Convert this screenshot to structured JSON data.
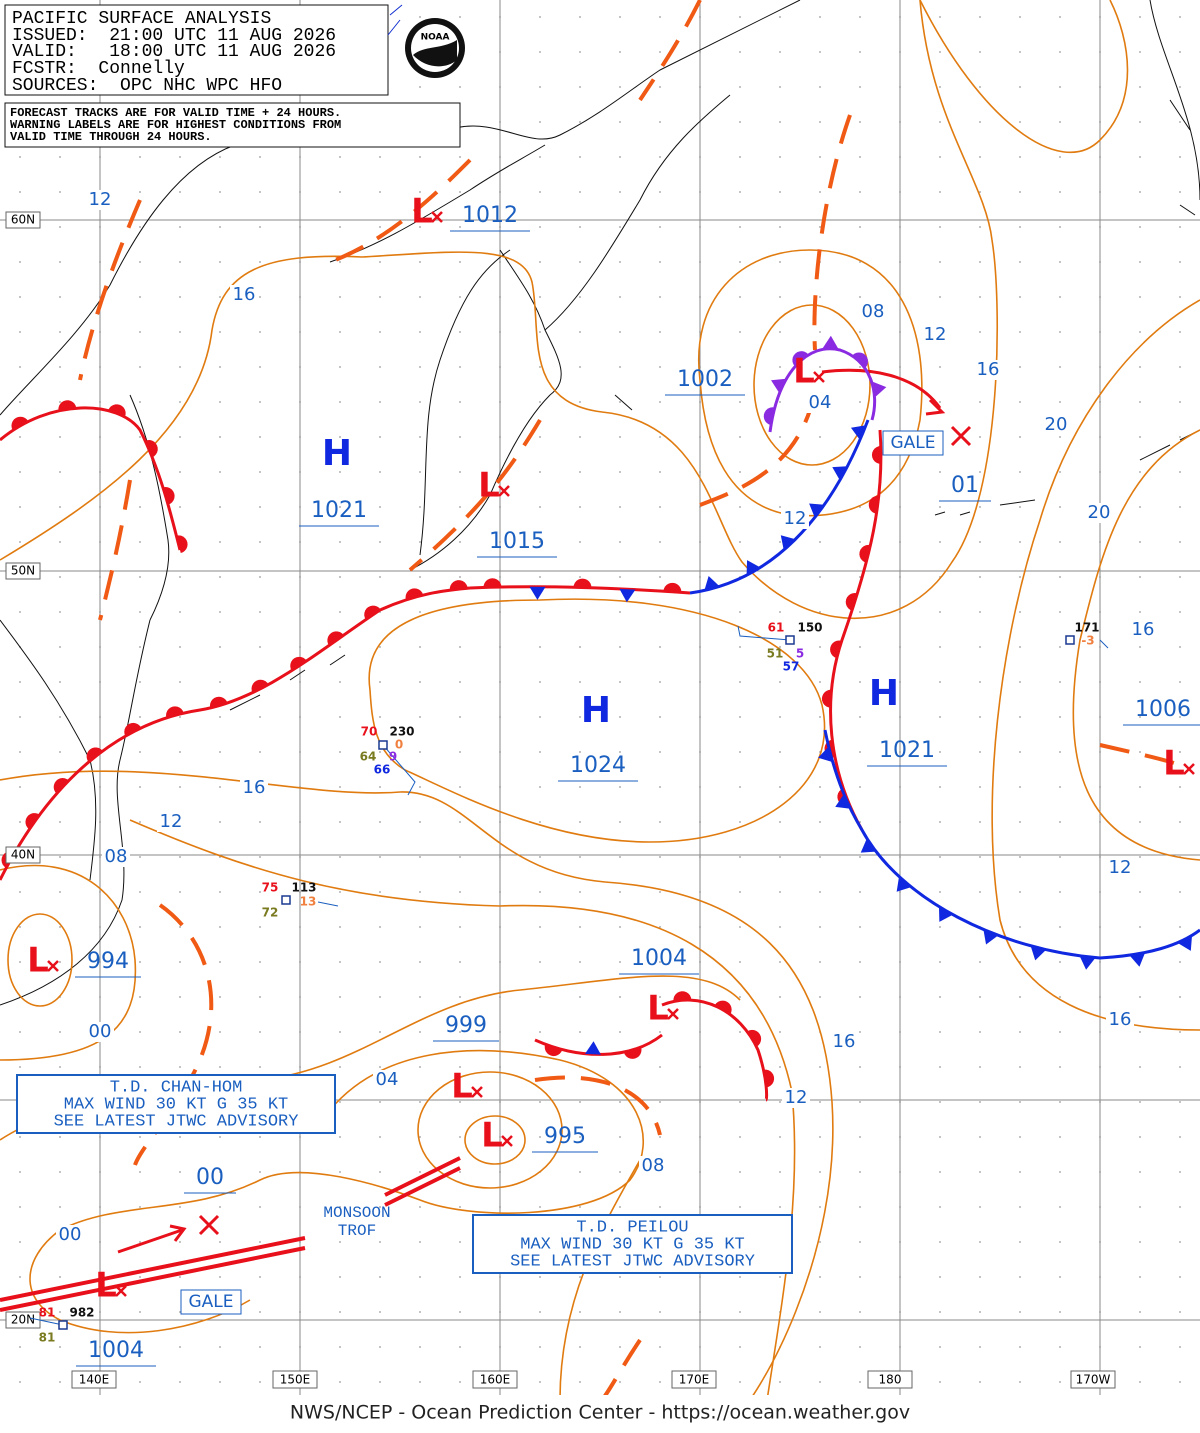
{
  "header": {
    "title": "PACIFIC SURFACE ANALYSIS",
    "issued": "ISSUED:  21:00 UTC 11 AUG 2026",
    "valid": "VALID:   18:00 UTC 11 AUG 2026",
    "forecaster": "FCSTR:  Connelly",
    "sources": "SOURCES:  OPC NHC WPC HFO"
  },
  "notice": [
    "FORECAST TRACKS ARE FOR VALID TIME + 24 HOURS.",
    "WARNING LABELS ARE FOR HIGHEST CONDITIONS FROM",
    "VALID TIME THROUGH 24 HOURS."
  ],
  "logo": "NOAA",
  "grid": {
    "latitudes": [
      "60N",
      "50N",
      "40N",
      "20N"
    ],
    "longitudes": [
      "140E",
      "150E",
      "160E",
      "170E",
      "180",
      "170W"
    ]
  },
  "pressure_centers": [
    {
      "symbol": "H",
      "pressure": "1021"
    },
    {
      "symbol": "H",
      "pressure": "1024"
    },
    {
      "symbol": "H",
      "pressure": "1021"
    },
    {
      "symbol": "L",
      "pressure": "1012"
    },
    {
      "symbol": "L",
      "pressure": "1015"
    },
    {
      "symbol": "L",
      "pressure": "1002"
    },
    {
      "symbol": "L",
      "pressure": "994"
    },
    {
      "symbol": "L",
      "pressure": "1004"
    },
    {
      "symbol": "L",
      "pressure": "999"
    },
    {
      "symbol": "L",
      "pressure": "995"
    },
    {
      "symbol": "L",
      "pressure": "1004"
    },
    {
      "symbol": "L",
      "pressure": "1006"
    },
    {
      "pressure": "01"
    },
    {
      "pressure": "00"
    }
  ],
  "isobar_labels": [
    "12",
    "16",
    "08",
    "12",
    "16",
    "04",
    "12",
    "20",
    "20",
    "16",
    "16",
    "12",
    "08",
    "00",
    "04",
    "08",
    "12",
    "16",
    "12",
    "16",
    "00"
  ],
  "gale_labels": [
    "GALE",
    "GALE"
  ],
  "warnings": [
    {
      "lines": [
        "T.D. CHAN-HOM",
        "MAX WIND 30 KT G 35 KT",
        "SEE LATEST JTWC ADVISORY"
      ]
    },
    {
      "lines": [
        "T.D. PEILOU",
        "MAX WIND 30 KT G 35 KT",
        "SEE LATEST JTWC ADVISORY"
      ]
    }
  ],
  "trough_label": [
    "MONSOON",
    "TROF"
  ],
  "station_plots": [
    {
      "values": [
        "61",
        "150",
        "51",
        "5",
        "57"
      ]
    },
    {
      "values": [
        "70",
        "230",
        "0",
        "64",
        "9",
        "66"
      ]
    },
    {
      "values": [
        "75",
        "113",
        "13",
        "72"
      ]
    },
    {
      "values": [
        "171",
        "-3"
      ]
    },
    {
      "values": [
        "81",
        "982",
        "81"
      ]
    }
  ],
  "footer": "NWS/NCEP - Ocean Prediction Center - https://ocean.weather.gov"
}
